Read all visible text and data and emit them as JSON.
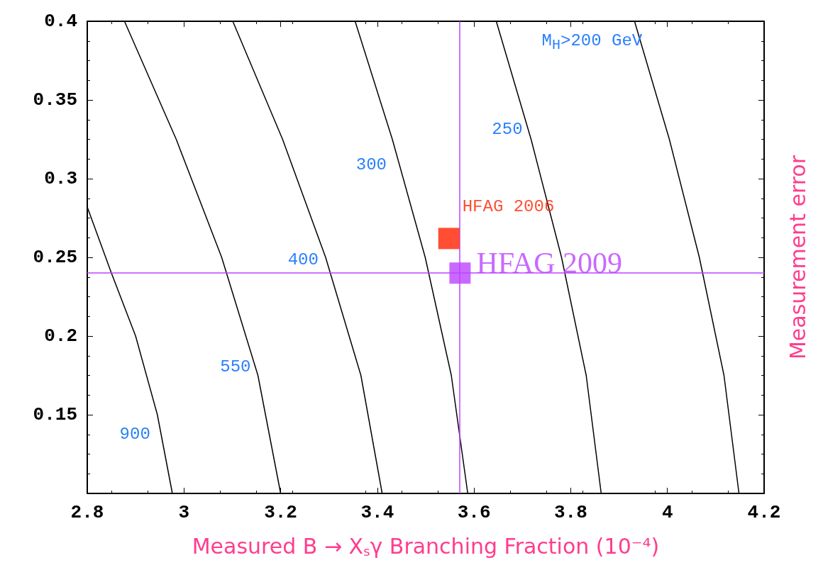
{
  "chart_data": {
    "type": "line",
    "xlabel": "Measured B → X$_{s}$γ Branching Fraction (10⁻⁴)",
    "ylabel": "Measurement error",
    "xlim": [
      2.8,
      4.2
    ],
    "xticks": [
      2.8,
      3,
      3.2,
      3.4,
      3.6,
      3.8,
      4,
      4.2
    ],
    "ylim": [
      0.1,
      0.4
    ],
    "yticks": [
      0.15,
      0.2,
      0.25,
      0.3,
      0.35,
      0.4
    ],
    "grid": false,
    "marker": "none",
    "line_style": "solid",
    "series": [
      {
        "name": "900",
        "color": "#000000",
        "x": [
          2.8,
          2.85,
          2.9,
          2.945,
          2.976
        ],
        "values": [
          0.282,
          0.24,
          0.2,
          0.15,
          0.1
        ]
      },
      {
        "name": "550",
        "color": "#000000",
        "x": [
          2.877,
          2.984,
          3.078,
          3.153,
          3.2
        ],
        "values": [
          0.4,
          0.325,
          0.25,
          0.175,
          0.1
        ]
      },
      {
        "name": "400",
        "color": "#000000",
        "x": [
          3.101,
          3.204,
          3.293,
          3.366,
          3.41
        ],
        "values": [
          0.4,
          0.325,
          0.25,
          0.175,
          0.1
        ]
      },
      {
        "name": "300",
        "color": "#000000",
        "x": [
          3.354,
          3.431,
          3.499,
          3.553,
          3.587
        ],
        "values": [
          0.4,
          0.325,
          0.25,
          0.175,
          0.1
        ]
      },
      {
        "name": "250",
        "color": "#000000",
        "x": [
          3.646,
          3.718,
          3.781,
          3.832,
          3.863
        ],
        "values": [
          0.4,
          0.325,
          0.25,
          0.175,
          0.1
        ]
      },
      {
        "name": "M$_{H}$>200 GeV",
        "color": "#000000",
        "x": [
          3.932,
          4.004,
          4.066,
          4.117,
          4.148
        ],
        "values": [
          0.4,
          0.325,
          0.25,
          0.175,
          0.1
        ]
      },
      {
        "type": "scatter",
        "marker": "square",
        "name": "HFAG 2006",
        "color": "#ff2200",
        "x": [
          3.548
        ],
        "values": [
          0.262
        ]
      },
      {
        "type": "scatter",
        "marker": "square",
        "name": "HFAG 2009",
        "color": "#bb44ff",
        "x": [
          3.571
        ],
        "values": [
          0.24
        ]
      }
    ],
    "ref_lines": [
      {
        "axis": "x",
        "value": 3.571,
        "color": "#bb44ff"
      },
      {
        "axis": "y",
        "value": 0.24,
        "color": "#bb44ff"
      }
    ]
  }
}
